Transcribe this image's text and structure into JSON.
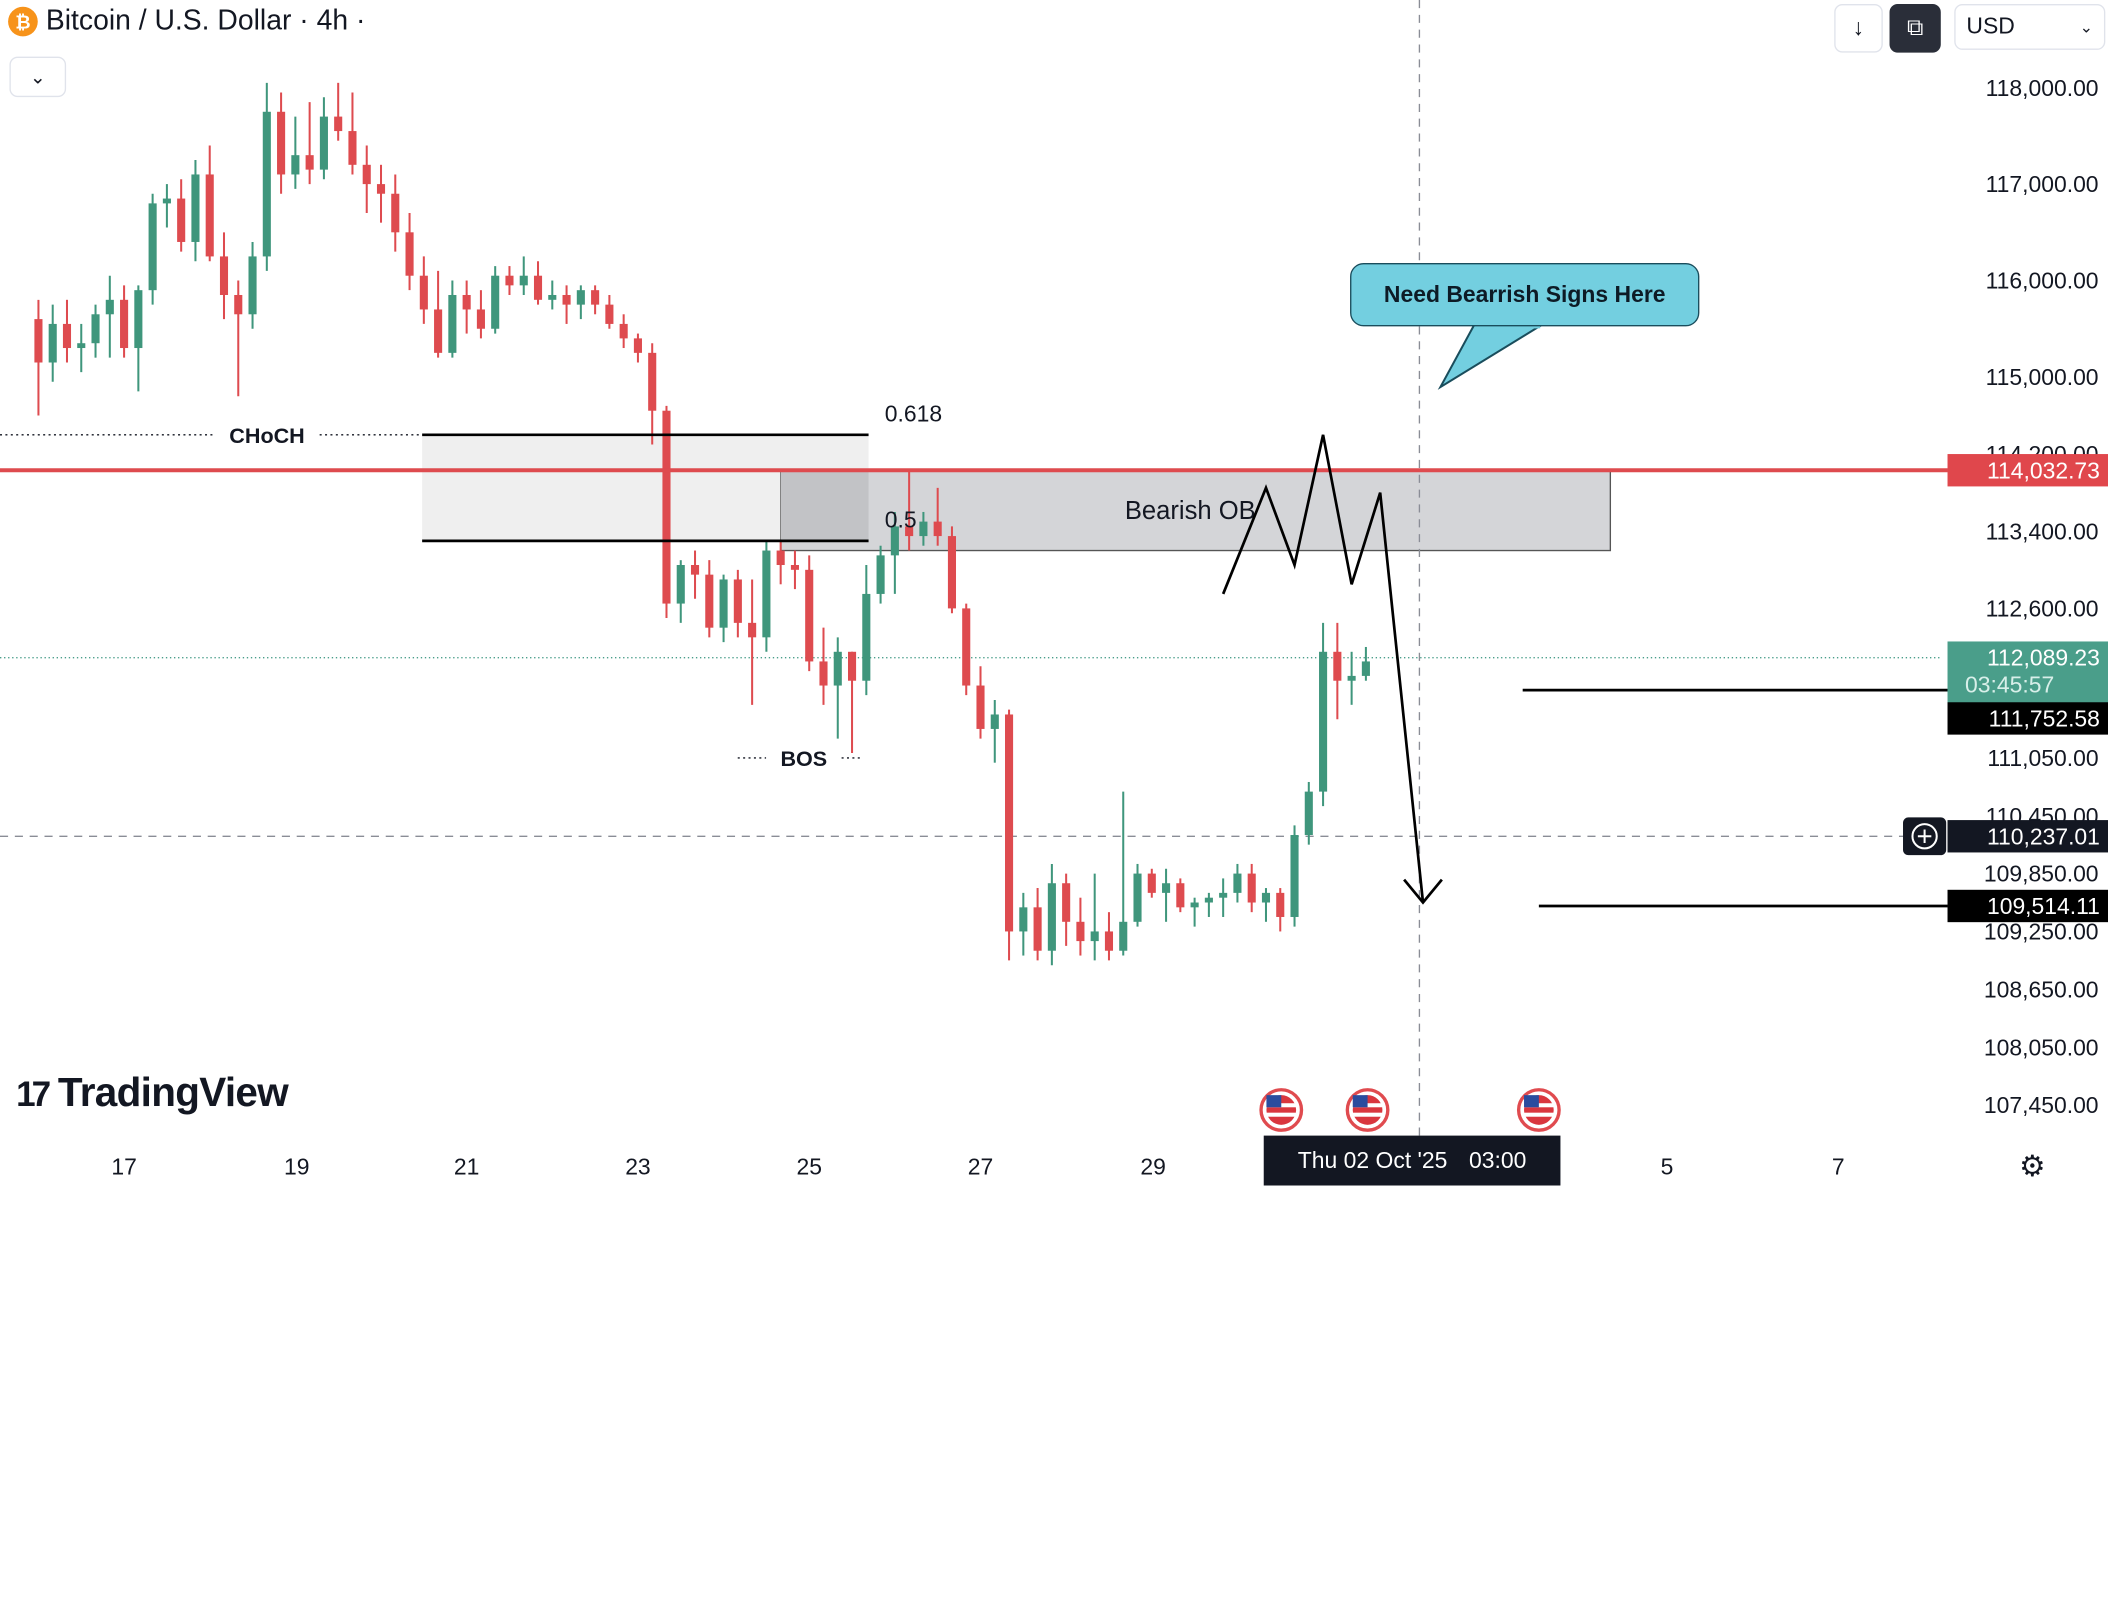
{
  "header": {
    "symbol_title": "Bitcoin / U.S. Dollar · 4h ·",
    "symbol_icon": "bitcoin-icon",
    "collapse_icon": "chevron-down-icon",
    "download_icon": "arrow-down-icon",
    "compare_icon": "compare-icon",
    "currency": "USD",
    "currency_icon": "chevron-down-icon"
  },
  "branding": {
    "logo_text": "TradingView"
  },
  "chart_data": {
    "type": "candlestick",
    "symbol": "Bitcoin / U.S. Dollar",
    "interval": "4h",
    "y_axis": {
      "ticks": [
        "118,000.00",
        "117,000.00",
        "116,000.00",
        "115,000.00",
        "114,200.00",
        "113,400.00",
        "112,600.00",
        "111,050.00",
        "110,450.00",
        "109,850.00",
        "109,250.00",
        "108,650.00",
        "108,050.00",
        "107,450.00"
      ],
      "tick_values": [
        118000,
        117000,
        116000,
        115000,
        114200,
        113400,
        112600,
        111050,
        110450,
        109850,
        109250,
        108650,
        108050,
        107450
      ]
    },
    "x_axis": {
      "ticks": [
        "17",
        "19",
        "21",
        "23",
        "25",
        "27",
        "29",
        "5",
        "7"
      ],
      "hover_date": "Thu 02 Oct '25",
      "hover_time": "03:00"
    },
    "price_labels": [
      {
        "name": "resistance-line",
        "text": "114,032.73",
        "value": 114032.73,
        "bg": "#e0474c",
        "fg": "#ffffff"
      },
      {
        "name": "current-price",
        "text": "112,089.23",
        "value": 112089.23,
        "bg": "#4a9e8a",
        "fg": "#ffffff"
      },
      {
        "name": "countdown",
        "text": "03:45:57",
        "bg": "#4a9e8a",
        "fg": "#d8efe9"
      },
      {
        "name": "target-1",
        "text": "111,752.58",
        "value": 111752.58,
        "bg": "#000000",
        "fg": "#ffffff"
      },
      {
        "name": "crosshair",
        "text": "110,237.01",
        "value": 110237.01,
        "bg": "#131722",
        "fg": "#ffffff"
      },
      {
        "name": "target-2",
        "text": "109,514.11",
        "value": 109514.11,
        "bg": "#000000",
        "fg": "#ffffff"
      }
    ],
    "annotations": {
      "choch": "CHoCH",
      "bos": "BOS",
      "fib_0618": "0.618",
      "fib_05": "0.5",
      "order_block": "Bearish OB",
      "callout": "Need Bearrish Signs Here"
    },
    "fib_levels": [
      114400,
      113300
    ],
    "order_block_range": [
      113200,
      114030
    ],
    "projected_path": [
      {
        "date": "2025-09-29T20:00",
        "price": 112750
      },
      {
        "date": "2025-09-30T08:00",
        "price": 113850
      },
      {
        "date": "2025-09-30T16:00",
        "price": 113050
      },
      {
        "date": "2025-10-01T00:00",
        "price": 114400
      },
      {
        "date": "2025-10-01T08:00",
        "price": 112850
      },
      {
        "date": "2025-10-01T16:00",
        "price": 113800
      },
      {
        "date": "2025-10-02T04:00",
        "price": 109550
      }
    ],
    "events": [
      "us-flag-icon",
      "us-flag-icon",
      "us-flag-icon"
    ],
    "candles": [
      {
        "d": "2025-09-16T00:00",
        "o": 115600,
        "h": 115800,
        "l": 114600,
        "c": 115150
      },
      {
        "d": "2025-09-16T04:00",
        "o": 115150,
        "h": 115750,
        "l": 114950,
        "c": 115550
      },
      {
        "d": "2025-09-16T08:00",
        "o": 115550,
        "h": 115800,
        "l": 115150,
        "c": 115300
      },
      {
        "d": "2025-09-16T12:00",
        "o": 115300,
        "h": 115550,
        "l": 115050,
        "c": 115350
      },
      {
        "d": "2025-09-16T16:00",
        "o": 115350,
        "h": 115750,
        "l": 115200,
        "c": 115650
      },
      {
        "d": "2025-09-16T20:00",
        "o": 115650,
        "h": 116050,
        "l": 115200,
        "c": 115800
      },
      {
        "d": "2025-09-17T00:00",
        "o": 115800,
        "h": 115950,
        "l": 115200,
        "c": 115300
      },
      {
        "d": "2025-09-17T04:00",
        "o": 115300,
        "h": 115950,
        "l": 114850,
        "c": 115900
      },
      {
        "d": "2025-09-17T08:00",
        "o": 115900,
        "h": 116900,
        "l": 115750,
        "c": 116800
      },
      {
        "d": "2025-09-17T12:00",
        "o": 116800,
        "h": 117000,
        "l": 116550,
        "c": 116850
      },
      {
        "d": "2025-09-17T16:00",
        "o": 116850,
        "h": 117050,
        "l": 116300,
        "c": 116400
      },
      {
        "d": "2025-09-17T20:00",
        "o": 116400,
        "h": 117250,
        "l": 116200,
        "c": 117100
      },
      {
        "d": "2025-09-18T00:00",
        "o": 117100,
        "h": 117400,
        "l": 116200,
        "c": 116250
      },
      {
        "d": "2025-09-18T04:00",
        "o": 116250,
        "h": 116500,
        "l": 115600,
        "c": 115850
      },
      {
        "d": "2025-09-18T08:00",
        "o": 115850,
        "h": 116000,
        "l": 114800,
        "c": 115650
      },
      {
        "d": "2025-09-18T12:00",
        "o": 115650,
        "h": 116400,
        "l": 115500,
        "c": 116250
      },
      {
        "d": "2025-09-18T16:00",
        "o": 116250,
        "h": 118050,
        "l": 116100,
        "c": 117750
      },
      {
        "d": "2025-09-18T20:00",
        "o": 117750,
        "h": 117950,
        "l": 116900,
        "c": 117100
      },
      {
        "d": "2025-09-19T00:00",
        "o": 117100,
        "h": 117700,
        "l": 116950,
        "c": 117300
      },
      {
        "d": "2025-09-19T04:00",
        "o": 117300,
        "h": 117850,
        "l": 117000,
        "c": 117150
      },
      {
        "d": "2025-09-19T08:00",
        "o": 117150,
        "h": 117900,
        "l": 117050,
        "c": 117700
      },
      {
        "d": "2025-09-19T12:00",
        "o": 117700,
        "h": 118050,
        "l": 117450,
        "c": 117550
      },
      {
        "d": "2025-09-19T16:00",
        "o": 117550,
        "h": 117950,
        "l": 117100,
        "c": 117200
      },
      {
        "d": "2025-09-19T20:00",
        "o": 117200,
        "h": 117400,
        "l": 116700,
        "c": 117000
      },
      {
        "d": "2025-09-20T00:00",
        "o": 117000,
        "h": 117200,
        "l": 116600,
        "c": 116900
      },
      {
        "d": "2025-09-20T04:00",
        "o": 116900,
        "h": 117100,
        "l": 116300,
        "c": 116500
      },
      {
        "d": "2025-09-20T08:00",
        "o": 116500,
        "h": 116700,
        "l": 115900,
        "c": 116050
      },
      {
        "d": "2025-09-20T12:00",
        "o": 116050,
        "h": 116250,
        "l": 115550,
        "c": 115700
      },
      {
        "d": "2025-09-20T16:00",
        "o": 115700,
        "h": 116100,
        "l": 115200,
        "c": 115250
      },
      {
        "d": "2025-09-20T20:00",
        "o": 115250,
        "h": 116000,
        "l": 115200,
        "c": 115850
      },
      {
        "d": "2025-09-21T00:00",
        "o": 115850,
        "h": 116000,
        "l": 115450,
        "c": 115700
      },
      {
        "d": "2025-09-21T04:00",
        "o": 115700,
        "h": 115900,
        "l": 115400,
        "c": 115500
      },
      {
        "d": "2025-09-21T08:00",
        "o": 115500,
        "h": 116150,
        "l": 115450,
        "c": 116050
      },
      {
        "d": "2025-09-21T12:00",
        "o": 116050,
        "h": 116150,
        "l": 115850,
        "c": 115950
      },
      {
        "d": "2025-09-21T16:00",
        "o": 115950,
        "h": 116250,
        "l": 115850,
        "c": 116050
      },
      {
        "d": "2025-09-21T20:00",
        "o": 116050,
        "h": 116200,
        "l": 115750,
        "c": 115800
      },
      {
        "d": "2025-09-22T00:00",
        "o": 115800,
        "h": 116000,
        "l": 115700,
        "c": 115850
      },
      {
        "d": "2025-09-22T04:00",
        "o": 115850,
        "h": 115950,
        "l": 115550,
        "c": 115750
      },
      {
        "d": "2025-09-22T08:00",
        "o": 115750,
        "h": 115950,
        "l": 115600,
        "c": 115900
      },
      {
        "d": "2025-09-22T12:00",
        "o": 115900,
        "h": 115950,
        "l": 115650,
        "c": 115750
      },
      {
        "d": "2025-09-22T16:00",
        "o": 115750,
        "h": 115850,
        "l": 115500,
        "c": 115550
      },
      {
        "d": "2025-09-22T20:00",
        "o": 115550,
        "h": 115650,
        "l": 115300,
        "c": 115400
      },
      {
        "d": "2025-09-23T00:00",
        "o": 115400,
        "h": 115450,
        "l": 115150,
        "c": 115250
      },
      {
        "d": "2025-09-23T04:00",
        "o": 115250,
        "h": 115350,
        "l": 114300,
        "c": 114650
      },
      {
        "d": "2025-09-23T08:00",
        "o": 114650,
        "h": 114700,
        "l": 112500,
        "c": 112650
      },
      {
        "d": "2025-09-23T12:00",
        "o": 112650,
        "h": 113100,
        "l": 112450,
        "c": 113050
      },
      {
        "d": "2025-09-23T16:00",
        "o": 113050,
        "h": 113200,
        "l": 112700,
        "c": 112950
      },
      {
        "d": "2025-09-23T20:00",
        "o": 112950,
        "h": 113100,
        "l": 112300,
        "c": 112400
      },
      {
        "d": "2025-09-24T00:00",
        "o": 112400,
        "h": 112950,
        "l": 112250,
        "c": 112900
      },
      {
        "d": "2025-09-24T04:00",
        "o": 112900,
        "h": 113000,
        "l": 112300,
        "c": 112450
      },
      {
        "d": "2025-09-24T08:00",
        "o": 112450,
        "h": 112900,
        "l": 111600,
        "c": 112300
      },
      {
        "d": "2025-09-24T12:00",
        "o": 112300,
        "h": 113300,
        "l": 112150,
        "c": 113200
      },
      {
        "d": "2025-09-24T16:00",
        "o": 113200,
        "h": 113300,
        "l": 112850,
        "c": 113050
      },
      {
        "d": "2025-09-24T20:00",
        "o": 113050,
        "h": 113200,
        "l": 112800,
        "c": 113000
      },
      {
        "d": "2025-09-25T00:00",
        "o": 113000,
        "h": 113150,
        "l": 111950,
        "c": 112050
      },
      {
        "d": "2025-09-25T04:00",
        "o": 112050,
        "h": 112400,
        "l": 111600,
        "c": 111800
      },
      {
        "d": "2025-09-25T08:00",
        "o": 111800,
        "h": 112300,
        "l": 111250,
        "c": 112150
      },
      {
        "d": "2025-09-25T12:00",
        "o": 112150,
        "h": 112150,
        "l": 111100,
        "c": 111850
      },
      {
        "d": "2025-09-25T16:00",
        "o": 111850,
        "h": 113050,
        "l": 111700,
        "c": 112750
      },
      {
        "d": "2025-09-25T20:00",
        "o": 112750,
        "h": 113250,
        "l": 112650,
        "c": 113150
      },
      {
        "d": "2025-09-26T00:00",
        "o": 113150,
        "h": 113600,
        "l": 112750,
        "c": 113450
      },
      {
        "d": "2025-09-26T04:00",
        "o": 113450,
        "h": 114050,
        "l": 113200,
        "c": 113350
      },
      {
        "d": "2025-09-26T08:00",
        "o": 113350,
        "h": 113600,
        "l": 113250,
        "c": 113500
      },
      {
        "d": "2025-09-26T12:00",
        "o": 113500,
        "h": 113850,
        "l": 113250,
        "c": 113350
      },
      {
        "d": "2025-09-26T16:00",
        "o": 113350,
        "h": 113450,
        "l": 112550,
        "c": 112600
      },
      {
        "d": "2025-09-26T20:00",
        "o": 112600,
        "h": 112650,
        "l": 111700,
        "c": 111800
      },
      {
        "d": "2025-09-27T00:00",
        "o": 111800,
        "h": 112000,
        "l": 111250,
        "c": 111350
      },
      {
        "d": "2025-09-27T04:00",
        "o": 111350,
        "h": 111650,
        "l": 111000,
        "c": 111500
      },
      {
        "d": "2025-09-27T08:00",
        "o": 111500,
        "h": 111550,
        "l": 108950,
        "c": 109250
      },
      {
        "d": "2025-09-27T12:00",
        "o": 109250,
        "h": 109650,
        "l": 109000,
        "c": 109500
      },
      {
        "d": "2025-09-27T16:00",
        "o": 109500,
        "h": 109700,
        "l": 108950,
        "c": 109050
      },
      {
        "d": "2025-09-27T20:00",
        "o": 109050,
        "h": 109950,
        "l": 108900,
        "c": 109750
      },
      {
        "d": "2025-09-28T00:00",
        "o": 109750,
        "h": 109850,
        "l": 109100,
        "c": 109350
      },
      {
        "d": "2025-09-28T04:00",
        "o": 109350,
        "h": 109600,
        "l": 109000,
        "c": 109150
      },
      {
        "d": "2025-09-28T08:00",
        "o": 109150,
        "h": 109850,
        "l": 108950,
        "c": 109250
      },
      {
        "d": "2025-09-28T12:00",
        "o": 109250,
        "h": 109450,
        "l": 108950,
        "c": 109050
      },
      {
        "d": "2025-09-28T16:00",
        "o": 109050,
        "h": 110700,
        "l": 109000,
        "c": 109350
      },
      {
        "d": "2025-09-28T20:00",
        "o": 109350,
        "h": 109950,
        "l": 109300,
        "c": 109850
      },
      {
        "d": "2025-09-29T00:00",
        "o": 109850,
        "h": 109900,
        "l": 109600,
        "c": 109650
      },
      {
        "d": "2025-09-29T04:00",
        "o": 109650,
        "h": 109900,
        "l": 109350,
        "c": 109750
      },
      {
        "d": "2025-09-29T08:00",
        "o": 109750,
        "h": 109800,
        "l": 109450,
        "c": 109500
      },
      {
        "d": "2025-09-29T12:00",
        "o": 109500,
        "h": 109600,
        "l": 109300,
        "c": 109550
      },
      {
        "d": "2025-09-29T16:00",
        "o": 109550,
        "h": 109650,
        "l": 109400,
        "c": 109600
      },
      {
        "d": "2025-09-29T20:00",
        "o": 109600,
        "h": 109800,
        "l": 109400,
        "c": 109650
      },
      {
        "d": "2025-09-30T00:00",
        "o": 109650,
        "h": 109950,
        "l": 109550,
        "c": 109850
      },
      {
        "d": "2025-09-30T04:00",
        "o": 109850,
        "h": 109950,
        "l": 109450,
        "c": 109550
      },
      {
        "d": "2025-09-30T08:00",
        "o": 109550,
        "h": 109700,
        "l": 109350,
        "c": 109650
      },
      {
        "d": "2025-09-30T12:00",
        "o": 109650,
        "h": 109700,
        "l": 109250,
        "c": 109400
      },
      {
        "d": "2025-09-30T16:00",
        "o": 109400,
        "h": 110350,
        "l": 109300,
        "c": 110250
      },
      {
        "d": "2025-09-30T20:00",
        "o": 110250,
        "h": 110800,
        "l": 110150,
        "c": 110700
      },
      {
        "d": "2025-10-01T00:00",
        "o": 110700,
        "h": 112450,
        "l": 110550,
        "c": 112150
      },
      {
        "d": "2025-10-01T04:00",
        "o": 112150,
        "h": 112450,
        "l": 111450,
        "c": 111850
      },
      {
        "d": "2025-10-01T08:00",
        "o": 111850,
        "h": 112150,
        "l": 111600,
        "c": 111900
      },
      {
        "d": "2025-10-01T12:00",
        "o": 111900,
        "h": 112200,
        "l": 111850,
        "c": 112050
      }
    ]
  }
}
